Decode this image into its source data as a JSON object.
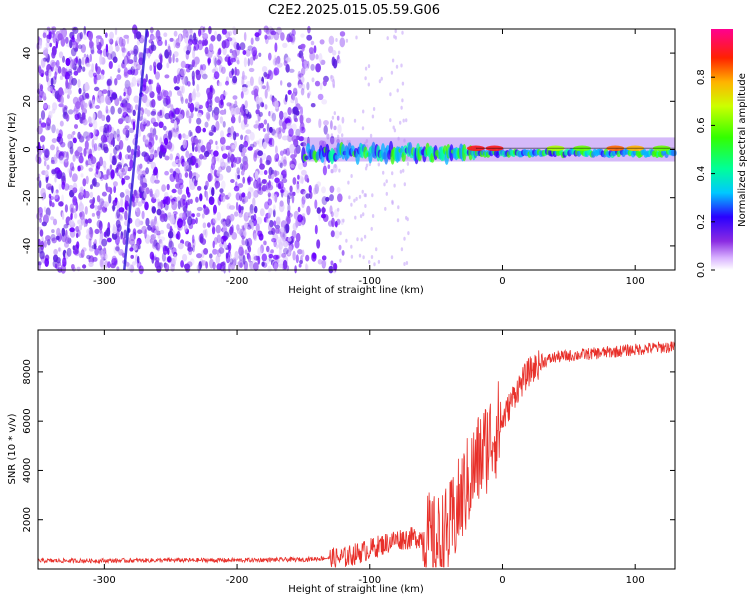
{
  "title": "C2E2.2025.015.05.59.G06",
  "colors": {
    "snr_line": "#e8302a",
    "frame": "#000000"
  },
  "chart_data": [
    {
      "type": "heatmap",
      "xlabel": "Height of straight line (km)",
      "ylabel": "Frequency (Hz)",
      "xlim": [
        -350,
        130
      ],
      "ylim": [
        -50,
        50
      ],
      "x_ticks": [
        -300,
        -200,
        -100,
        0,
        100
      ],
      "y_ticks": [
        -40,
        -20,
        0,
        20,
        40
      ],
      "colorbar": {
        "label": "Normalized spectral amplitude",
        "range": [
          0,
          1
        ],
        "ticks": [
          0.0,
          0.2,
          0.4,
          0.6,
          0.8
        ],
        "tick_labels": [
          "0.0",
          "0.2",
          "0.4",
          "0.6",
          "0.8"
        ]
      },
      "features": {
        "noise_region_x": [
          -350,
          -130
        ],
        "signal_band_center_hz": 0,
        "signal_onset_x": -150,
        "strong_signal_x": [
          -20,
          130
        ]
      }
    },
    {
      "type": "line",
      "xlabel": "Height of straight line (km)",
      "ylabel": "SNR (10 * v/v)",
      "xlim": [
        -350,
        130
      ],
      "ylim": [
        0,
        9700
      ],
      "x_ticks": [
        -300,
        -200,
        -100,
        0,
        100
      ],
      "y_ticks": [
        2000,
        4000,
        6000,
        8000
      ],
      "series": [
        {
          "x": [
            -350,
            -300,
            -250,
            -200,
            -150,
            -120,
            -100,
            -80,
            -60,
            -50,
            -40,
            -30,
            -20,
            -10,
            0,
            10,
            20,
            30,
            40,
            60,
            80,
            100,
            120,
            130
          ],
          "values": [
            300,
            300,
            320,
            320,
            350,
            450,
            800,
            1200,
            1300,
            1000,
            1500,
            3000,
            4200,
            5200,
            6000,
            7200,
            8000,
            8400,
            8600,
            8700,
            8800,
            8900,
            9000,
            9000
          ]
        }
      ]
    }
  ]
}
